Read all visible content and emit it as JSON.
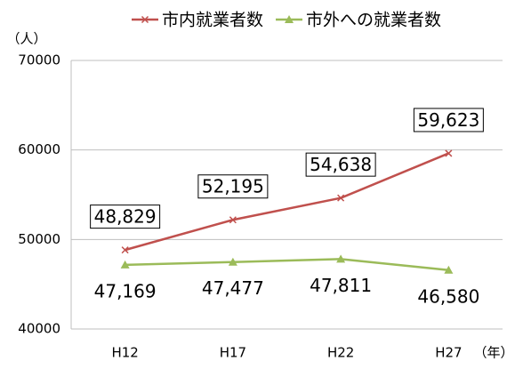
{
  "chart_data": {
    "type": "line",
    "y_unit": "（人）",
    "x_unit": "（年）",
    "categories": [
      "H12",
      "H17",
      "H22",
      "H27"
    ],
    "series": [
      {
        "name": "市内就業者数",
        "color": "#c0504d",
        "marker": "x",
        "values": [
          48829,
          52195,
          54638,
          59623
        ],
        "value_labels": [
          "48,829",
          "52,195",
          "54,638",
          "59,623"
        ]
      },
      {
        "name": "市外への就業者数",
        "color": "#9bbb59",
        "marker": "triangle",
        "values": [
          47169,
          47477,
          47811,
          46580
        ],
        "value_labels": [
          "47,169",
          "47,477",
          "47,811",
          "46,580"
        ]
      }
    ],
    "ylim": [
      40000,
      70000
    ],
    "yticks": [
      40000,
      50000,
      60000,
      70000
    ],
    "grid": true
  }
}
